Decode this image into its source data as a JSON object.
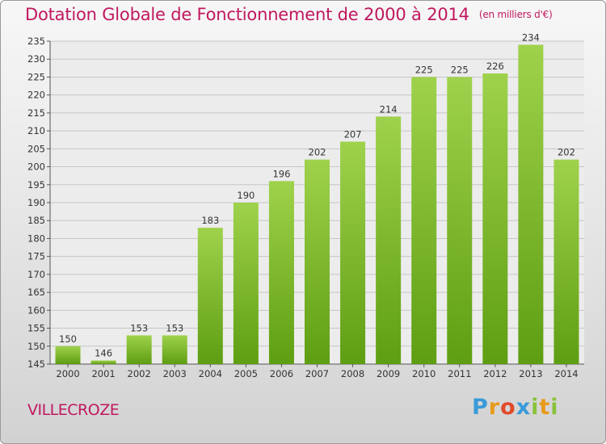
{
  "title": "Dotation Globale de Fonctionnement de 2000 à 2014",
  "subtitle": "(en milliers d'€)",
  "commune": "VILLECROZE",
  "logo": {
    "letters": [
      "P",
      "r",
      "o",
      "x",
      "i",
      "t",
      "i"
    ],
    "colors": [
      "#3a9ad9",
      "#e89a1a",
      "#e04a2a",
      "#3a9ad9",
      "#8ac23a",
      "#e89a1a",
      "#8ac23a"
    ]
  },
  "colors": {
    "bar_light": "#9fd24c",
    "bar_dark": "#5e9e12",
    "title": "#c0185f"
  },
  "chart_data": {
    "type": "bar",
    "title": "Dotation Globale de Fonctionnement de 2000 à 2014",
    "subtitle": "(en milliers d'€)",
    "categories": [
      "2000",
      "2001",
      "2002",
      "2003",
      "2004",
      "2005",
      "2006",
      "2007",
      "2008",
      "2009",
      "2010",
      "2011",
      "2012",
      "2013",
      "2014"
    ],
    "values": [
      150,
      146,
      153,
      153,
      183,
      190,
      196,
      202,
      207,
      214,
      225,
      225,
      226,
      234,
      202
    ],
    "ylim": [
      145,
      235
    ],
    "yticks": [
      145,
      150,
      155,
      160,
      165,
      170,
      175,
      180,
      185,
      190,
      195,
      200,
      205,
      210,
      215,
      220,
      225,
      230,
      235
    ],
    "grid": true,
    "legend": "none"
  }
}
